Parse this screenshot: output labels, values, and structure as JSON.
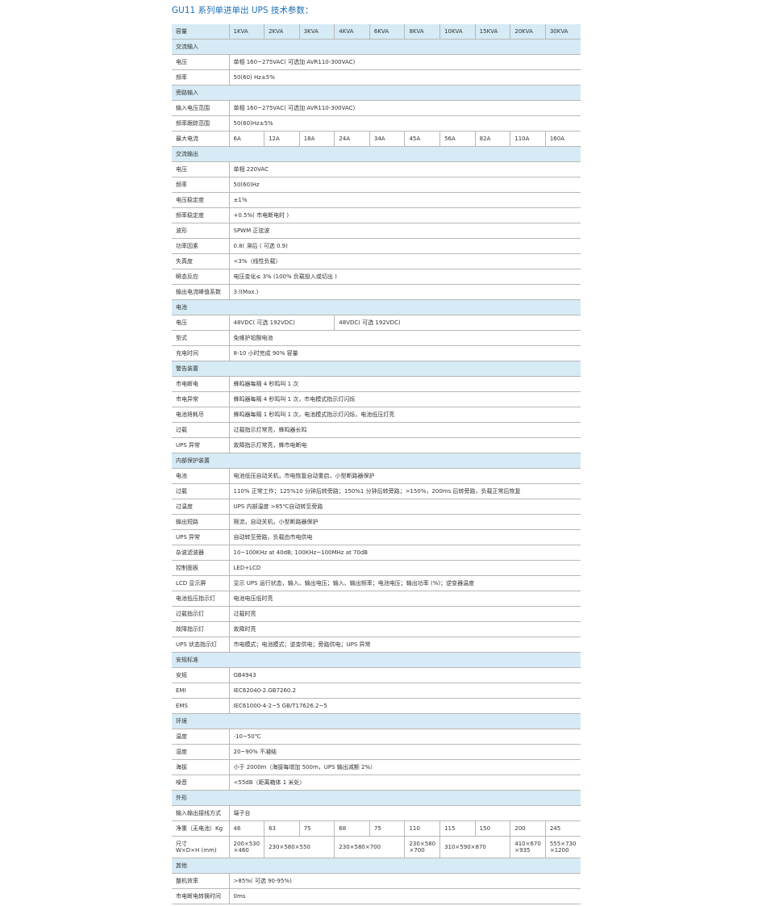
{
  "header": {
    "title": "GU11 系列单进单出 UPS 技术参数："
  },
  "table": {
    "corner": "容量",
    "columns": [
      "1KVA",
      "2KVA",
      "3KVA",
      "4KVA",
      "6KVA",
      "8KVA",
      "10KVA",
      "15KVA",
      "20KVA",
      "30KVA"
    ],
    "rows": [
      {
        "section": "交流输入"
      },
      {
        "label": "电压",
        "cells": [
          {
            "text": "单相 160~275VAC( 可选加 AVR110-300VAC)"
          }
        ]
      },
      {
        "label": "频率",
        "cells": [
          {
            "text": "50(60) Hz±5%"
          }
        ]
      },
      {
        "section": "旁路输入"
      },
      {
        "label": "输入电压范围",
        "cells": [
          {
            "text": "单相 160~275VAC( 可选加 AVR110-300VAC)"
          }
        ]
      },
      {
        "label": "频率跟踪范围",
        "cells": [
          {
            "text": "50(60)Hz±5%"
          }
        ]
      },
      {
        "label": "最大电流",
        "cells": [
          {
            "text": "6A"
          },
          {
            "text": "12A"
          },
          {
            "text": "18A"
          },
          {
            "text": "24A"
          },
          {
            "text": "34A"
          },
          {
            "text": "45A"
          },
          {
            "text": "56A"
          },
          {
            "text": "82A"
          },
          {
            "text": "110A"
          },
          {
            "text": "160A"
          }
        ]
      },
      {
        "section": "交流输出"
      },
      {
        "label": "电压",
        "cells": [
          {
            "text": "单相 220VAC"
          }
        ]
      },
      {
        "label": "频率",
        "cells": [
          {
            "text": "50(60)Hz"
          }
        ]
      },
      {
        "label": "电压稳定度",
        "cells": [
          {
            "text": "±1%"
          }
        ]
      },
      {
        "label": "频率稳定度",
        "cells": [
          {
            "text": "+0.5%( 市电断电时 )"
          }
        ]
      },
      {
        "label": "波形",
        "cells": [
          {
            "text": "SPWM 正弦波"
          }
        ]
      },
      {
        "label": "功率因素",
        "cells": [
          {
            "text": "0.8( 滞后 ( 可选 0.9)"
          }
        ]
      },
      {
        "label": "失真度",
        "cells": [
          {
            "text": "<3%（线性负载）"
          }
        ]
      },
      {
        "label": "瞬态反应",
        "cells": [
          {
            "text": "电压变化≤ 3% (100% 负载投入或切出 )"
          }
        ]
      },
      {
        "label": "输出电流峰值系数",
        "cells": [
          {
            "text": "3:l(Max.)"
          }
        ]
      },
      {
        "section": "电池"
      },
      {
        "label": "电压",
        "cells": [
          {
            "text": "48VDC( 可选 192VDC)",
            "span": 3
          },
          {
            "text": "48VDC( 可选 192VDC)"
          }
        ]
      },
      {
        "label": "型式",
        "cells": [
          {
            "text": "免维护铅酸电池"
          }
        ]
      },
      {
        "label": "充电时间",
        "cells": [
          {
            "text": "8-10 小时完成 90% 容量"
          }
        ]
      },
      {
        "section": "警告装置"
      },
      {
        "label": "市电断电",
        "cells": [
          {
            "text": "蜂鸣器每隔 4 秒鸣叫 1 次"
          }
        ]
      },
      {
        "label": "市电异常",
        "cells": [
          {
            "text": "蜂鸣器每隔 4 秒鸣叫 1 次，市电模式指示灯闪烁"
          }
        ]
      },
      {
        "label": "电池将耗尽",
        "cells": [
          {
            "text": "蜂鸣器每隔 1 秒鸣叫 1 次，电池模式指示灯闪烁，电池低压灯亮"
          }
        ]
      },
      {
        "label": "过载",
        "cells": [
          {
            "text": "过载指示灯常亮，蜂鸣器长鸣"
          }
        ]
      },
      {
        "label": "UPS 异常",
        "cells": [
          {
            "text": "故障指示灯常亮，蜂市电断电"
          }
        ]
      },
      {
        "section": "内部保护装置"
      },
      {
        "label": "电池",
        "cells": [
          {
            "text": "电池低压自动关机，市电恢复自动重启，小型断路器保护"
          }
        ]
      },
      {
        "label": "过载",
        "cells": [
          {
            "text": "110% 正常工作；125%10 分钟后转旁路；150%1 分钟后转旁路；>150%，200ms 后转旁路，负载正常后恢复"
          }
        ]
      },
      {
        "label": "过温度",
        "cells": [
          {
            "text": "UPS 内部温度 >85℃自动转至旁路"
          }
        ]
      },
      {
        "label": "输出短路",
        "cells": [
          {
            "text": "限流，自动关机，小型断路器保护"
          }
        ]
      },
      {
        "label": "UPS 异常",
        "cells": [
          {
            "text": "自动转至旁路，负载由市电供电"
          }
        ]
      },
      {
        "label": "杂波滤波器",
        "cells": [
          {
            "text": "10~100KHz at 40dB; 100KHz~100MHz at 70dB"
          }
        ]
      },
      {
        "label": "控制面板",
        "cells": [
          {
            "text": "LED+LCD"
          }
        ]
      },
      {
        "label": "LCD 显示屏",
        "cells": [
          {
            "text": "显示 UPS 运行状态，输入、输出电压；输入、输出频率；电池电压；输出功率 (%)；逆变器温度"
          }
        ]
      },
      {
        "label": "电池低压指示灯",
        "cells": [
          {
            "text": "电池电压低时亮"
          }
        ]
      },
      {
        "label": "过载指示灯",
        "cells": [
          {
            "text": "过载时亮"
          }
        ]
      },
      {
        "label": "故障指示灯",
        "cells": [
          {
            "text": "故障时亮"
          }
        ]
      },
      {
        "label": "UPS 状态指示灯",
        "cells": [
          {
            "text": "市电模式；电池模式；逆变供电；旁路供电；UPS 异常"
          }
        ]
      },
      {
        "section": "安规标准"
      },
      {
        "label": "安规",
        "cells": [
          {
            "text": "GB4943"
          }
        ]
      },
      {
        "label": "EMI",
        "cells": [
          {
            "text": "IEC62040-2.GB7260.2"
          }
        ]
      },
      {
        "label": "EMS",
        "cells": [
          {
            "text": "IEC61000-4-2~5  GB/T17626.2~5"
          }
        ]
      },
      {
        "section": "环境"
      },
      {
        "label": "温度",
        "cells": [
          {
            "text": "-10~50℃"
          }
        ]
      },
      {
        "label": "湿度",
        "cells": [
          {
            "text": "20~90% 不凝结"
          }
        ]
      },
      {
        "label": "海拔",
        "cells": [
          {
            "text": "小于 2000m（海拔每增加 500m，UPS 输出减额 2%）"
          }
        ]
      },
      {
        "label": "噪音",
        "cells": [
          {
            "text": "<55dB（距离箱体 1 米处）"
          }
        ]
      },
      {
        "section": "外形"
      },
      {
        "label": "输入输出接线方式",
        "cells": [
          {
            "text": "端子台"
          }
        ]
      },
      {
        "label": "净重（无电池）Kg",
        "cells": [
          {
            "text": "46"
          },
          {
            "text": "63"
          },
          {
            "text": "75"
          },
          {
            "text": "68"
          },
          {
            "text": "75"
          },
          {
            "text": "110"
          },
          {
            "text": "115"
          },
          {
            "text": "150"
          },
          {
            "text": "200"
          },
          {
            "text": "245"
          }
        ]
      },
      {
        "label": "尺寸\nW×D×H (mm)",
        "cells": [
          {
            "text": "200×530\n×460"
          },
          {
            "text": "230×580×550",
            "span": 2
          },
          {
            "text": "230×580×700",
            "span": 2
          },
          {
            "text": "230×580\n×700"
          },
          {
            "text": "310×590×870",
            "span": 2
          },
          {
            "text": "410×670\n×935"
          },
          {
            "text": "555×730\n×1200"
          }
        ]
      },
      {
        "section": "其他"
      },
      {
        "label": "整机效率",
        "cells": [
          {
            "text": ">85%( 可选 90-95%)"
          }
        ]
      },
      {
        "label": "市电断电转换时间",
        "cells": [
          {
            "text": "0ms"
          }
        ]
      }
    ]
  }
}
